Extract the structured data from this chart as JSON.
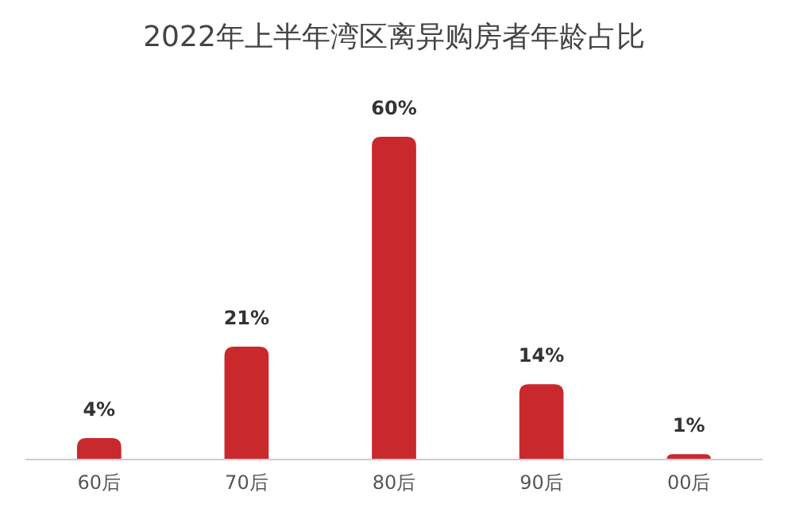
{
  "chart_data": {
    "type": "bar",
    "title": "2022年上半年湾区离异购房者年龄占比",
    "categories": [
      "60后",
      "70后",
      "80后",
      "90后",
      "00后"
    ],
    "values": [
      4,
      21,
      60,
      14,
      1
    ],
    "value_labels": [
      "4%",
      "21%",
      "60%",
      "14%",
      "1%"
    ],
    "color": "#c9282d",
    "grid": false,
    "legend": false
  }
}
